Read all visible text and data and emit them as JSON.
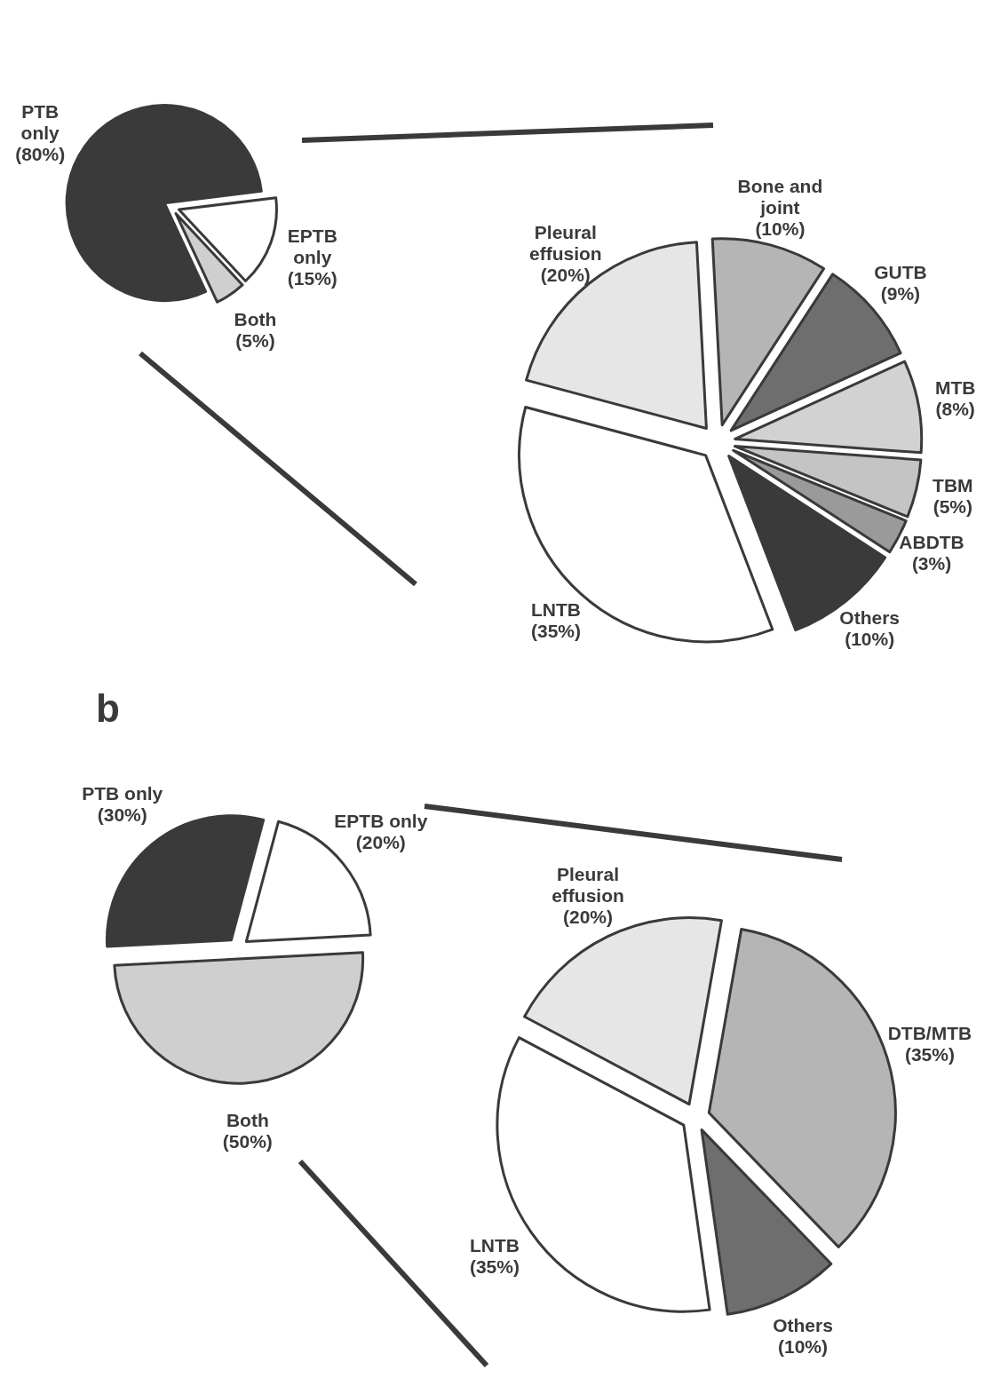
{
  "chart_data": [
    {
      "type": "pie",
      "categories": [
        "PTB only",
        "EPTB only",
        "Both"
      ],
      "values": [
        80,
        15,
        5
      ],
      "colors": [
        "#3a3a3a",
        "#ffffff",
        "#cfcfcf"
      ],
      "value_labels": [
        "(80%)",
        "(15%)",
        "(5%)"
      ]
    },
    {
      "type": "pie",
      "categories": [
        "Pleural effusion",
        "Bone and joint",
        "GUTB",
        "MTB",
        "TBM",
        "ABDTB",
        "Others",
        "LNTB"
      ],
      "values": [
        20,
        10,
        9,
        8,
        5,
        3,
        10,
        35
      ],
      "colors": [
        "#e6e6e6",
        "#b5b5b5",
        "#6e6e6e",
        "#d2d2d2",
        "#c4c4c4",
        "#9a9a9a",
        "#3a3a3a",
        "#ffffff"
      ],
      "value_labels": [
        "(20%)",
        "(10%)",
        "(9%)",
        "(8%)",
        "(5%)",
        "(3%)",
        "(10%)",
        "(35%)"
      ]
    },
    {
      "type": "pie",
      "title": "b",
      "categories": [
        "PTB only",
        "EPTB only",
        "Both"
      ],
      "values": [
        30,
        20,
        50
      ],
      "colors": [
        "#3a3a3a",
        "#ffffff",
        "#cfcfcf"
      ],
      "value_labels": [
        "(30%)",
        "(20%)",
        "(50%)"
      ]
    },
    {
      "type": "pie",
      "categories": [
        "Pleural effusion",
        "DTB/MTB",
        "Others",
        "LNTB"
      ],
      "values": [
        20,
        35,
        10,
        35
      ],
      "colors": [
        "#e6e6e6",
        "#b5b5b5",
        "#6e6e6e",
        "#ffffff"
      ],
      "value_labels": [
        "(20%)",
        "(35%)",
        "(10%)",
        "(35%)"
      ]
    }
  ]
}
